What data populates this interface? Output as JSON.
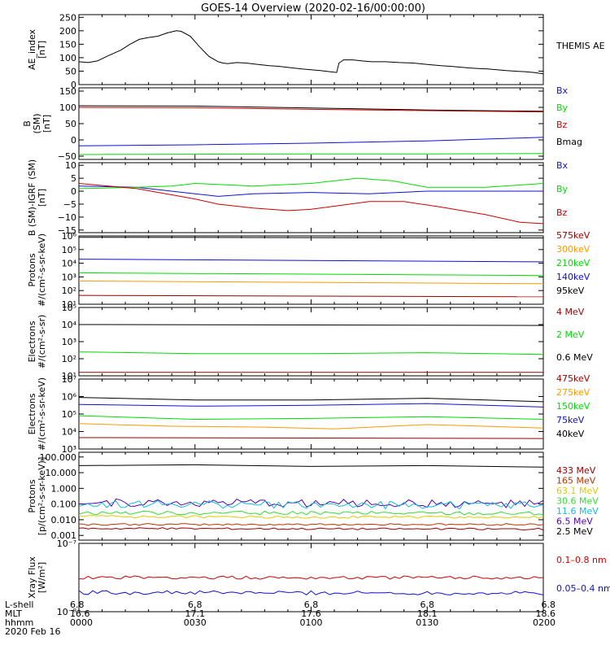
{
  "title": "GOES-14 Overview (2020-02-16/00:00:00)",
  "colors": {
    "black": "#000000",
    "blue": "#1010d0",
    "green": "#00dd00",
    "red": "#cc0000",
    "dkred": "#990000",
    "orange": "#ff9900",
    "cyan": "#00ccee",
    "purple": "#5500aa",
    "brown": "#bb3300",
    "yellow": "#ddcc00",
    "ltgreen": "#33dd33",
    "teal": "#11bbdd"
  },
  "x_axis": {
    "labels": [
      {
        "lshell": "6.8",
        "mlt": "16.6",
        "time": "0000"
      },
      {
        "lshell": "6.8",
        "mlt": "17.1",
        "time": "0030"
      },
      {
        "lshell": "6.8",
        "mlt": "17.6",
        "time": "0100"
      },
      {
        "lshell": "6.8",
        "mlt": "18.1",
        "time": "0130"
      },
      {
        "lshell": "6.8",
        "mlt": "18.6",
        "time": "0200"
      }
    ],
    "row_names": [
      "L-shell",
      "MLT",
      "hhmm"
    ],
    "date": "2020 Feb 16"
  },
  "chart_data": [
    {
      "type": "line",
      "id": "ae",
      "ylabel": [
        "AE_index",
        "[nT]"
      ],
      "ylim": [
        0,
        260
      ],
      "yticks": [
        "250",
        "200",
        "150",
        "100",
        "50",
        "0"
      ],
      "ytick_values": [
        250,
        200,
        150,
        100,
        50,
        0
      ],
      "log": false,
      "legend": [
        {
          "text": "THEMIS AE",
          "color": "black"
        }
      ],
      "series": [
        {
          "name": "THEMIS AE",
          "color": "black",
          "x": [
            0,
            4,
            8,
            12,
            18,
            22,
            26,
            30,
            34,
            38,
            42,
            44,
            48,
            52,
            56,
            60,
            62,
            64,
            68,
            72,
            76,
            82,
            86,
            92,
            96,
            100,
            104,
            108,
            111,
            112,
            114,
            118,
            122,
            126,
            132,
            138,
            144,
            150,
            156,
            160,
            164,
            168,
            172,
            176,
            180,
            184,
            188,
            192,
            196,
            200
          ],
          "y": [
            85,
            82,
            88,
            105,
            128,
            150,
            168,
            175,
            180,
            192,
            200,
            198,
            180,
            140,
            105,
            85,
            80,
            78,
            82,
            80,
            76,
            70,
            68,
            62,
            58,
            55,
            52,
            48,
            45,
            80,
            92,
            92,
            88,
            85,
            85,
            82,
            80,
            75,
            70,
            68,
            65,
            62,
            60,
            58,
            55,
            52,
            50,
            48,
            45,
            40
          ]
        }
      ]
    },
    {
      "type": "line",
      "id": "bsm",
      "ylabel": [
        "B",
        "(SM)",
        "[nT]"
      ],
      "ylim": [
        -60,
        160
      ],
      "yticks": [
        "150",
        "100",
        "50",
        "0",
        "−50"
      ],
      "ytick_values": [
        150,
        100,
        50,
        0,
        -50
      ],
      "log": false,
      "legend": [
        {
          "text": "Bx",
          "color": "blue"
        },
        {
          "text": "By",
          "color": "green"
        },
        {
          "text": "Bz",
          "color": "red"
        },
        {
          "text": "Bmag",
          "color": "black"
        }
      ],
      "series": [
        {
          "name": "Bmag",
          "color": "black",
          "x": [
            0,
            50,
            100,
            150,
            200
          ],
          "y": [
            105,
            104,
            98,
            92,
            88
          ]
        },
        {
          "name": "Bz",
          "color": "red",
          "x": [
            0,
            50,
            100,
            150,
            200
          ],
          "y": [
            100,
            99,
            94,
            90,
            86
          ]
        },
        {
          "name": "Bx",
          "color": "blue",
          "x": [
            0,
            50,
            100,
            150,
            200
          ],
          "y": [
            -18,
            -15,
            -10,
            -3,
            8
          ]
        },
        {
          "name": "By",
          "color": "green",
          "x": [
            0,
            50,
            100,
            150,
            200
          ],
          "y": [
            -45,
            -44,
            -43,
            -43,
            -42
          ]
        }
      ]
    },
    {
      "type": "line",
      "id": "bigrf",
      "ylabel": [
        "B (SM)-IGRF (SM)",
        "[nT]"
      ],
      "ylim": [
        -16,
        11
      ],
      "yticks": [
        "10",
        "5",
        "0",
        "−5",
        "−10",
        "−15"
      ],
      "ytick_values": [
        10,
        5,
        0,
        -5,
        -10,
        -15
      ],
      "log": false,
      "legend": [
        {
          "text": "Bx",
          "color": "blue"
        },
        {
          "text": "By",
          "color": "green"
        },
        {
          "text": "Bz",
          "color": "red"
        }
      ],
      "series": [
        {
          "name": "Bx",
          "color": "blue",
          "x": [
            0,
            25,
            50,
            60,
            75,
            100,
            125,
            150,
            175,
            200
          ],
          "y": [
            2,
            1.5,
            -1,
            -2,
            -1,
            -0.5,
            -1,
            0,
            0,
            0
          ]
        },
        {
          "name": "By",
          "color": "green",
          "x": [
            0,
            25,
            40,
            50,
            75,
            100,
            120,
            135,
            150,
            175,
            200
          ],
          "y": [
            1,
            1.5,
            2,
            3,
            2,
            3,
            5,
            4,
            1.5,
            1.5,
            3
          ]
        },
        {
          "name": "Bz",
          "color": "red",
          "x": [
            0,
            25,
            50,
            60,
            75,
            90,
            100,
            125,
            140,
            155,
            175,
            190,
            200
          ],
          "y": [
            3,
            1,
            -3,
            -5,
            -6.5,
            -7.5,
            -7,
            -4,
            -4,
            -6,
            -9,
            -12,
            -12.5
          ]
        }
      ]
    },
    {
      "type": "line",
      "id": "protons1",
      "ylabel": [
        "Protons",
        "#/(cm²-s-sr-keV)"
      ],
      "ylim": [
        1,
        6
      ],
      "yticks": [
        "10⁶",
        "10⁵",
        "10⁴",
        "10³",
        "10²",
        "10¹"
      ],
      "ytick_values": [
        6,
        5,
        4,
        3,
        2,
        1
      ],
      "log": true,
      "legend": [
        {
          "text": "575keV",
          "color": "dkred"
        },
        {
          "text": "300keV",
          "color": "orange"
        },
        {
          "text": "210keV",
          "color": "green"
        },
        {
          "text": "140keV",
          "color": "blue"
        },
        {
          "text": "95keV",
          "color": "black"
        }
      ],
      "series": [
        {
          "name": "95keV",
          "color": "black",
          "x": [
            0,
            200
          ],
          "y": [
            5.9,
            5.85
          ]
        },
        {
          "name": "140keV",
          "color": "blue",
          "x": [
            0,
            200
          ],
          "y": [
            4.3,
            4.1
          ]
        },
        {
          "name": "210keV",
          "color": "green",
          "x": [
            0,
            200
          ],
          "y": [
            3.3,
            3.1
          ]
        },
        {
          "name": "300keV",
          "color": "orange",
          "x": [
            0,
            200
          ],
          "y": [
            2.7,
            2.5
          ]
        },
        {
          "name": "575keV",
          "color": "dkred",
          "x": [
            0,
            200
          ],
          "y": [
            1.65,
            1.55
          ]
        }
      ]
    },
    {
      "type": "line",
      "id": "electrons1",
      "ylabel": [
        "Electrons",
        "#/(cm²-s-sr)"
      ],
      "ylim": [
        1,
        5
      ],
      "yticks": [
        "10⁵",
        "10⁴",
        "10³",
        "10²",
        "10¹"
      ],
      "ytick_values": [
        5,
        4,
        3,
        2,
        1
      ],
      "log": true,
      "legend": [
        {
          "text": "4 MeV",
          "color": "dkred"
        },
        {
          "text": "2 MeV",
          "color": "green"
        },
        {
          "text": "0.6 MeV",
          "color": "black"
        }
      ],
      "series": [
        {
          "name": "0.6 MeV",
          "color": "black",
          "x": [
            0,
            200
          ],
          "y": [
            4.0,
            3.95
          ]
        },
        {
          "name": "2 MeV",
          "color": "green",
          "x": [
            0,
            50,
            100,
            150,
            200
          ],
          "y": [
            2.4,
            2.3,
            2.3,
            2.35,
            2.25
          ]
        },
        {
          "name": "4 MeV",
          "color": "dkred",
          "x": [
            0,
            200
          ],
          "y": [
            1.2,
            1.2
          ]
        }
      ]
    },
    {
      "type": "line",
      "id": "electrons2",
      "ylabel": [
        "Electrons",
        "#/(cm²-s-sr-keV)"
      ],
      "ylim": [
        3,
        7
      ],
      "yticks": [
        "10⁷",
        "10⁶",
        "10⁵",
        "10⁴",
        "10³"
      ],
      "ytick_values": [
        7,
        6,
        5,
        4,
        3
      ],
      "log": true,
      "legend": [
        {
          "text": "475keV",
          "color": "dkred"
        },
        {
          "text": "275keV",
          "color": "orange"
        },
        {
          "text": "150keV",
          "color": "green"
        },
        {
          "text": "75keV",
          "color": "blue"
        },
        {
          "text": "40keV",
          "color": "black"
        }
      ],
      "series": [
        {
          "name": "40keV",
          "color": "black",
          "x": [
            0,
            50,
            100,
            150,
            200
          ],
          "y": [
            5.95,
            5.8,
            5.8,
            5.9,
            5.7
          ]
        },
        {
          "name": "75keV",
          "color": "blue",
          "x": [
            0,
            50,
            100,
            150,
            200
          ],
          "y": [
            5.55,
            5.45,
            5.5,
            5.6,
            5.4
          ]
        },
        {
          "name": "150keV",
          "color": "green",
          "x": [
            0,
            50,
            100,
            150,
            200
          ],
          "y": [
            4.9,
            4.7,
            4.75,
            4.85,
            4.7
          ]
        },
        {
          "name": "275keV",
          "color": "orange",
          "x": [
            0,
            40,
            80,
            110,
            150,
            200
          ],
          "y": [
            4.45,
            4.3,
            4.25,
            4.15,
            4.4,
            4.2
          ]
        },
        {
          "name": "475keV",
          "color": "dkred",
          "x": [
            0,
            200
          ],
          "y": [
            3.65,
            3.6
          ]
        }
      ]
    },
    {
      "type": "line",
      "id": "protons2",
      "ylabel": [
        "Protons",
        "[p/(cm²-s-sr-keV)]"
      ],
      "ylim": [
        -3.3,
        2.3
      ],
      "yticks": [
        "100.000",
        "10.000",
        "1.000",
        "0.100",
        "0.010",
        "0.001"
      ],
      "ytick_values": [
        2,
        1,
        0,
        -1,
        -2,
        -3
      ],
      "log": true,
      "legend": [
        {
          "text": "433 MeV",
          "color": "dkred"
        },
        {
          "text": "165 MeV",
          "color": "brown"
        },
        {
          "text": "63.1 MeV",
          "color": "yellow"
        },
        {
          "text": "30.6 MeV",
          "color": "ltgreen"
        },
        {
          "text": "11.6 MeV",
          "color": "teal"
        },
        {
          "text": "6.5 MeV",
          "color": "purple"
        },
        {
          "text": "2.5 MeV",
          "color": "black"
        }
      ],
      "series": [
        {
          "name": "2.5 MeV",
          "color": "black",
          "x": [
            0,
            50,
            100,
            150,
            200
          ],
          "y": [
            1.45,
            1.5,
            1.4,
            1.45,
            1.35
          ]
        },
        {
          "name": "6.5 MeV",
          "color": "purple",
          "x": [
            0,
            200
          ],
          "y": [
            -0.9,
            -1.0
          ],
          "noise": 0.25
        },
        {
          "name": "11.6 MeV",
          "color": "teal",
          "x": [
            0,
            200
          ],
          "y": [
            -1.0,
            -1.1
          ],
          "noise": 0.25
        },
        {
          "name": "30.6 MeV",
          "color": "ltgreen",
          "x": [
            0,
            200
          ],
          "y": [
            -1.55,
            -1.6
          ],
          "noise": 0.12
        },
        {
          "name": "63.1 MeV",
          "color": "yellow",
          "x": [
            0,
            200
          ],
          "y": [
            -1.8,
            -1.85
          ],
          "noise": 0.08
        },
        {
          "name": "165 MeV",
          "color": "brown",
          "x": [
            0,
            200
          ],
          "y": [
            -2.3,
            -2.3
          ],
          "noise": 0.06
        },
        {
          "name": "433 MeV",
          "color": "dkred",
          "x": [
            0,
            200
          ],
          "y": [
            -2.55,
            -2.6
          ],
          "noise": 0.06
        }
      ]
    },
    {
      "type": "line",
      "id": "xray",
      "ylabel": [
        "Xray Flux",
        "[W/m²]"
      ],
      "ylim": [
        -8,
        -7
      ],
      "yticks": [
        "10⁻⁷",
        "10⁻⁸"
      ],
      "ytick_values": [
        -7,
        -8
      ],
      "log": true,
      "legend": [
        {
          "text": "0.1–0.8 nm",
          "color": "red"
        },
        {
          "text": "0.05–0.4 nm",
          "color": "blue"
        }
      ],
      "series": [
        {
          "name": "0.1–0.8 nm",
          "color": "red",
          "x": [
            0,
            200
          ],
          "y": [
            -7.5,
            -7.5
          ],
          "noise": 0.025
        },
        {
          "name": "0.05–0.4 nm",
          "color": "blue",
          "x": [
            0,
            200
          ],
          "y": [
            -7.72,
            -7.73
          ],
          "noise": 0.03
        }
      ]
    }
  ]
}
